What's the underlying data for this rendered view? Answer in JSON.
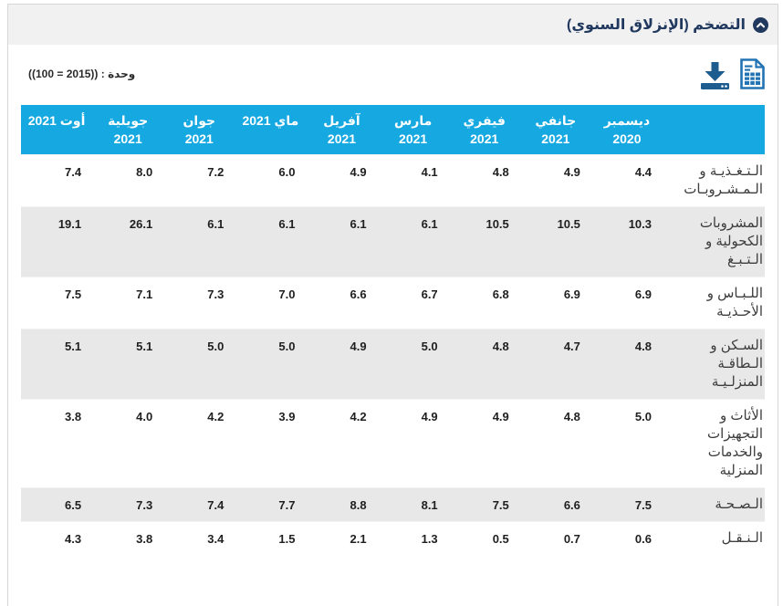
{
  "panel": {
    "title": "التضخم (الإنزلاق السنوي)",
    "collapse_icon": "chevron-up-circle-icon"
  },
  "toolbar": {
    "unit_label": "وحدة : ((2015 = 100))",
    "icons": [
      "download-icon",
      "export-table-icon"
    ]
  },
  "colors": {
    "header_accent": "#16a8e0",
    "alt_row": "#e8e8e8",
    "title_navy": "#21395f",
    "download_icon": "#1d5c8f",
    "export_icon": "#2273b4",
    "panel_header_bg": "#f1f1f1"
  },
  "table": {
    "direction": "rtl",
    "columns": [
      "ديسمبر\n2020",
      "جانفي\n2021",
      "فيفري\n2021",
      "مارس\n2021",
      "آفريل\n2021",
      "ماي 2021",
      "جوان\n2021",
      "جويلية\n2021",
      "أوت 2021"
    ],
    "rows": [
      {
        "label": "الـتـغـذيـة و\nالـمـشـروبـات",
        "values": [
          "4.4",
          "4.9",
          "4.8",
          "4.1",
          "4.9",
          "6.0",
          "7.2",
          "8.0",
          "7.4"
        ]
      },
      {
        "label": "المشروبات\nالكحولية و\nالـتـبـغ",
        "values": [
          "10.3",
          "10.5",
          "10.5",
          "6.1",
          "6.1",
          "6.1",
          "6.1",
          "26.1",
          "19.1"
        ]
      },
      {
        "label": "اللـبـاس و\nالأحـذيـة",
        "values": [
          "6.9",
          "6.9",
          "6.8",
          "6.7",
          "6.6",
          "7.0",
          "7.3",
          "7.1",
          "7.5"
        ]
      },
      {
        "label": "السـكن و\nالـطاقـة\nالمنزلـيـة",
        "values": [
          "4.8",
          "4.7",
          "4.8",
          "5.0",
          "4.9",
          "5.0",
          "5.0",
          "5.1",
          "5.1"
        ]
      },
      {
        "label": "الأثاث و\nالتجهيزات\nوالخدمات\nالمنزلية",
        "values": [
          "5.0",
          "4.8",
          "4.9",
          "4.9",
          "4.2",
          "3.9",
          "4.2",
          "4.0",
          "3.8"
        ]
      },
      {
        "label": "الـصـحـة",
        "values": [
          "7.5",
          "6.6",
          "7.5",
          "8.1",
          "8.8",
          "7.7",
          "7.4",
          "7.3",
          "6.5"
        ]
      },
      {
        "label": "الـنـقـل",
        "values": [
          "0.6",
          "0.7",
          "0.5",
          "1.3",
          "2.1",
          "1.5",
          "3.4",
          "3.8",
          "4.3"
        ]
      }
    ]
  }
}
